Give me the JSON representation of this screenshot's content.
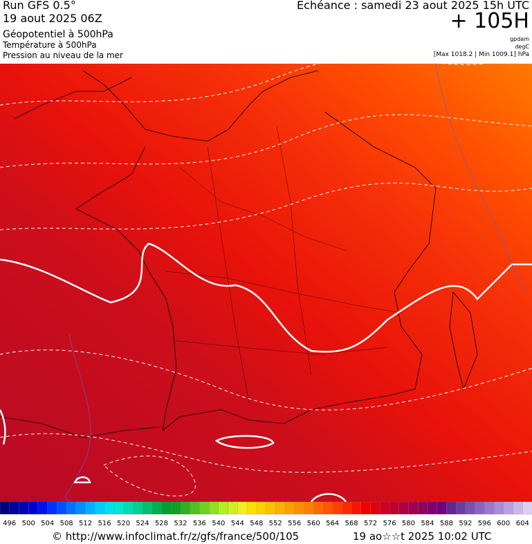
{
  "header": {
    "run": "Run GFS 0.5°",
    "date": "19 aout 2025 06Z",
    "field_1": "Géopotentiel à 500hPa",
    "field_2": "Température à 500hPa",
    "field_3": "Pression au niveau de la mer",
    "echeance": "Echéance : samedi 23 aout 2025 15h UTC",
    "lead": "+ 105H",
    "unit_1": "gpdam",
    "unit_2": "degC",
    "range": "[Max 1018.2 | Min 1009.1] hPa"
  },
  "legend": {
    "labels": [
      496,
      500,
      504,
      508,
      512,
      516,
      520,
      524,
      528,
      532,
      536,
      540,
      544,
      548,
      552,
      556,
      560,
      564,
      568,
      572,
      576,
      580,
      584,
      588,
      592,
      596,
      600,
      604
    ],
    "colors": [
      "#00007f",
      "#00009a",
      "#0000b8",
      "#0000d6",
      "#0010f0",
      "#0030ff",
      "#0050ff",
      "#0070ff",
      "#0090ff",
      "#00b0ff",
      "#00ccff",
      "#00e0f0",
      "#00e6d0",
      "#00dcb0",
      "#00d090",
      "#00c070",
      "#00b050",
      "#00a030",
      "#10a020",
      "#30b020",
      "#50c020",
      "#70d020",
      "#90e020",
      "#b0f020",
      "#d0f020",
      "#f0f020",
      "#ffe000",
      "#ffd000",
      "#ffc000",
      "#ffb000",
      "#ffa000",
      "#ff9000",
      "#ff8000",
      "#ff6a00",
      "#ff5500",
      "#ff4000",
      "#ff2a00",
      "#f81500",
      "#f00000",
      "#e00010",
      "#d00020",
      "#c00030",
      "#b00040",
      "#a00050",
      "#900060",
      "#800070",
      "#700080",
      "#602890",
      "#6a3ca0",
      "#7a50b0",
      "#8a64c0",
      "#9a78cc",
      "#aa8cd8",
      "#bca0e0",
      "#ccb8e8",
      "#dcd0f0"
    ]
  },
  "footer": {
    "url": "© http://www.infoclimat.fr/z/gfs/france/500/105",
    "timestamp": "19 ao☆☆t 2025 10:02 UTC"
  }
}
